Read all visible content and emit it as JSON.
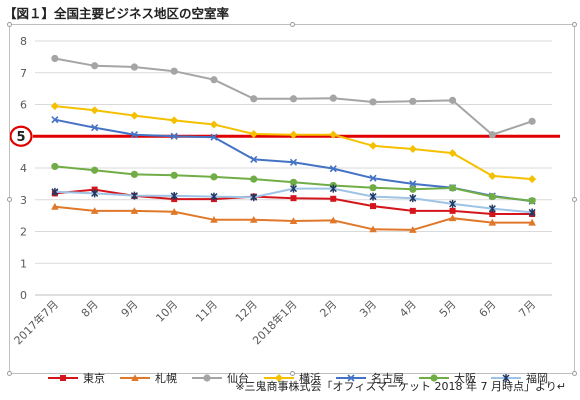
{
  "page": {
    "title": "【図１】全国主要ビジネス地区の空室率"
  },
  "source_note": "※三鬼商事株式会「オフィスマーケット 2018 年 7 月時点」より↵",
  "chart_data": {
    "type": "line",
    "title": "",
    "xlabel": "",
    "ylabel": "",
    "categories": [
      "2017年7月",
      "8月",
      "9月",
      "10月",
      "11月",
      "12月",
      "2018年1月",
      "2月",
      "3月",
      "4月",
      "5月",
      "6月",
      "7月"
    ],
    "ylim": [
      0,
      8
    ],
    "y_ticks": [
      "0",
      "1",
      "2",
      "3",
      "4",
      "5",
      "6",
      "7",
      "8"
    ],
    "grid": true,
    "legend_position": "bottom",
    "reference_line": {
      "value": 5,
      "label": "5",
      "color": "#e00000"
    },
    "series": [
      {
        "name": "東京",
        "color": "#d4161c",
        "marker": "square",
        "values": [
          3.2,
          3.32,
          3.12,
          3.02,
          3.02,
          3.1,
          3.05,
          3.03,
          2.8,
          2.65,
          2.65,
          2.55,
          2.55
        ]
      },
      {
        "name": "札幌",
        "color": "#e0782a",
        "marker": "triangle",
        "values": [
          2.78,
          2.65,
          2.65,
          2.62,
          2.37,
          2.37,
          2.33,
          2.35,
          2.07,
          2.05,
          2.42,
          2.28,
          2.28
        ]
      },
      {
        "name": "仙台",
        "color": "#a5a5a5",
        "marker": "circle",
        "values": [
          7.45,
          7.22,
          7.18,
          7.05,
          6.78,
          6.18,
          6.18,
          6.2,
          6.08,
          6.1,
          6.13,
          5.05,
          5.47
        ]
      },
      {
        "name": "横浜",
        "color": "#f5c000",
        "marker": "diamond",
        "values": [
          5.95,
          5.82,
          5.65,
          5.5,
          5.37,
          5.07,
          5.05,
          5.05,
          4.7,
          4.6,
          4.47,
          3.75,
          3.65
        ]
      },
      {
        "name": "名古屋",
        "color": "#4472c4",
        "marker": "x",
        "values": [
          5.52,
          5.27,
          5.05,
          5.0,
          4.97,
          4.27,
          4.18,
          3.98,
          3.68,
          3.5,
          3.38,
          3.12,
          2.95
        ]
      },
      {
        "name": "大阪",
        "color": "#70ad47",
        "marker": "circle",
        "values": [
          4.05,
          3.93,
          3.8,
          3.77,
          3.72,
          3.65,
          3.55,
          3.45,
          3.38,
          3.33,
          3.37,
          3.1,
          2.97
        ]
      },
      {
        "name": "福岡",
        "color": "#9dc3e6",
        "marker": "star",
        "values": [
          3.25,
          3.2,
          3.13,
          3.12,
          3.1,
          3.08,
          3.35,
          3.35,
          3.1,
          3.05,
          2.87,
          2.72,
          2.6
        ]
      }
    ]
  }
}
